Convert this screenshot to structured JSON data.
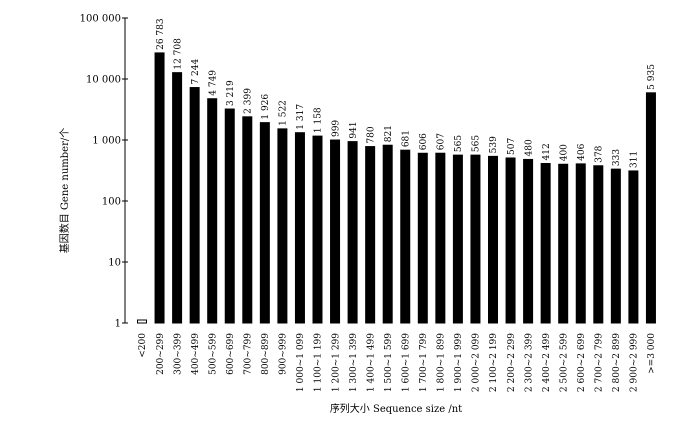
{
  "chart_data": {
    "type": "bar",
    "yscale": "log",
    "ylim": [
      1,
      100000
    ],
    "yticks": [
      1,
      10,
      100,
      1000,
      10000,
      100000
    ],
    "ytick_labels": [
      "1",
      "10",
      "100",
      "1 000",
      "10 000",
      "100 000"
    ],
    "ylabel": "基因数目 Gene number/个",
    "xlabel": "序列大小  Sequence size /nt",
    "grid": false,
    "categories": [
      "<200",
      "200~299",
      "300~399",
      "400~499",
      "500~599",
      "600~699",
      "700~799",
      "800~899",
      "900~999",
      "1 000~1 099",
      "1 100~1 199",
      "1 200~1 299",
      "1 300~1 399",
      "1 400~1 499",
      "1 500~1 599",
      "1 600~1 699",
      "1 700~1 799",
      "1 800~1 899",
      "1 900~1 999",
      "2 000~2 099",
      "2 100~2 199",
      "2 200~2 299",
      "2 300~2 399",
      "2 400~2 499",
      "2 500~2 599",
      "2 600~2 699",
      "2 700~2 799",
      "2 800~2 899",
      "2 900~2 999",
      ">=3 000"
    ],
    "values": [
      1,
      26783,
      12708,
      7244,
      4749,
      3219,
      2399,
      1926,
      1522,
      1317,
      1158,
      999,
      941,
      780,
      821,
      681,
      606,
      607,
      565,
      565,
      539,
      507,
      480,
      412,
      400,
      406,
      378,
      333,
      311,
      5935
    ],
    "data_labels": [
      "",
      "26 783",
      "12 708",
      "7 244",
      "4 749",
      "3 219",
      "2 399",
      "1 926",
      "1 522",
      "1 317",
      "1 158",
      "999",
      "941",
      "780",
      "821",
      "681",
      "606",
      "607",
      "565",
      "565",
      "539",
      "507",
      "480",
      "412",
      "400",
      "406",
      "378",
      "333",
      "311",
      "5 935"
    ]
  }
}
